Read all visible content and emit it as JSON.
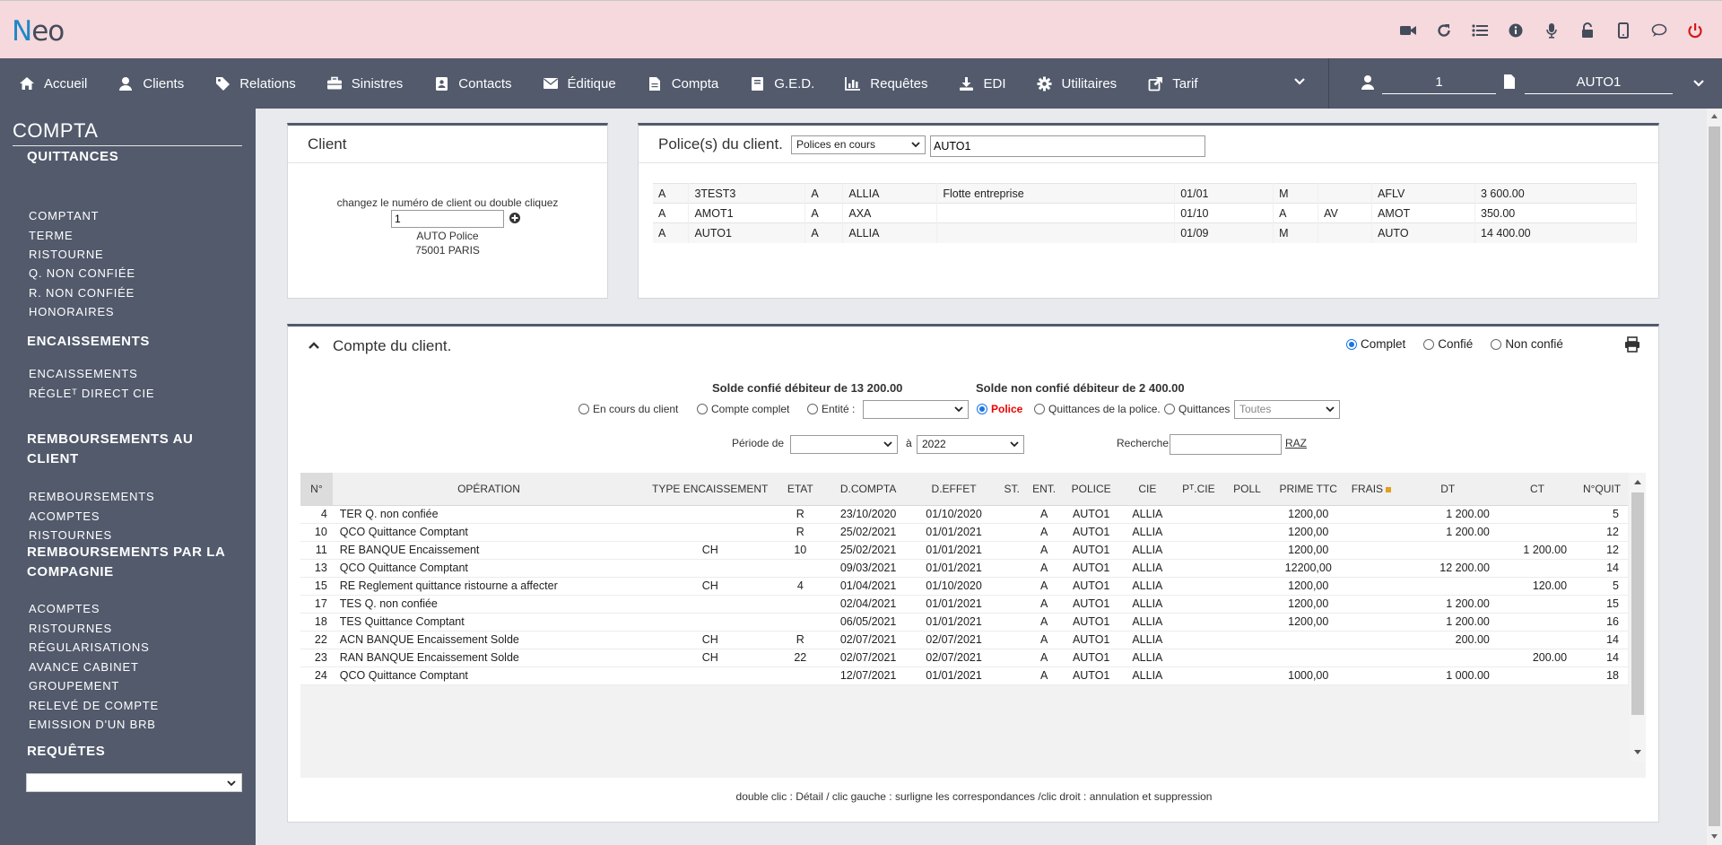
{
  "app": {
    "logo_n": "N",
    "logo_rest": "eo"
  },
  "top_icons": [
    "video-icon",
    "refresh-icon",
    "list-icon",
    "info-icon",
    "microphone-icon",
    "unlock-icon",
    "mobile-icon",
    "chat-icon",
    "power-icon"
  ],
  "nav": {
    "items": [
      {
        "label": "Accueil",
        "icon": "home-icon"
      },
      {
        "label": "Clients",
        "icon": "user-icon"
      },
      {
        "label": "Relations",
        "icon": "tag-icon"
      },
      {
        "label": "Sinistres",
        "icon": "briefcase-icon"
      },
      {
        "label": "Contacts",
        "icon": "contact-card-icon"
      },
      {
        "label": "Éditique",
        "icon": "envelope-icon"
      },
      {
        "label": "Compta",
        "icon": "file-icon"
      },
      {
        "label": "G.E.D.",
        "icon": "book-icon"
      },
      {
        "label": "Requêtes",
        "icon": "chart-icon"
      },
      {
        "label": "EDI",
        "icon": "download-icon"
      },
      {
        "label": "Utilitaires",
        "icon": "gear-icon"
      },
      {
        "label": "Tarif",
        "icon": "external-link-icon"
      }
    ],
    "client_number": "1",
    "policy_number": "AUTO1"
  },
  "sidebar": {
    "title": "COMPTA",
    "sections": [
      {
        "title": "QUITTANCES",
        "items": [
          "COMPTANT",
          "TERME",
          "RISTOURNE",
          "Q. NON CONFIÉE",
          "R. NON CONFIÉE",
          "HONORAIRES"
        ]
      },
      {
        "title": "ENCAISSEMENTS",
        "items": [
          "ENCAISSEMENTS",
          "RÉGLEᵀ DIRECT CIE"
        ]
      },
      {
        "title": "REMBOURSEMENTS AU CLIENT",
        "items": [
          "REMBOURSEMENTS",
          "ACOMPTES",
          "RISTOURNES"
        ]
      },
      {
        "title": "REMBOURSEMENTS PAR LA COMPAGNIE",
        "items": [
          "ACOMPTES",
          "RISTOURNES",
          "RÉGULARISATIONS",
          "AVANCE CABINET",
          "GROUPEMENT",
          "RELEVÉ DE COMPTE",
          "EMISSION D'UN BRB"
        ]
      },
      {
        "title": "REQUÊTES",
        "items": []
      }
    ],
    "requetes_select": ""
  },
  "client_card": {
    "title": "Client",
    "hint": "changez le numéro de client ou double cliquez",
    "number": "1",
    "name": "AUTO Police",
    "city": "75001 PARIS"
  },
  "policies_card": {
    "title": "Police(s) du client.",
    "filter": "Polices en cours",
    "search": "AUTO1",
    "rows": [
      [
        "A",
        "3TEST3",
        "A",
        "ALLIA",
        "Flotte entreprise",
        "01/01",
        "M",
        "",
        "AFLV",
        "3 600.00"
      ],
      [
        "A",
        "AMOT1",
        "A",
        "AXA",
        "",
        "01/10",
        "A",
        "AV",
        "AMOT",
        "350.00"
      ],
      [
        "A",
        "AUTO1",
        "A",
        "ALLIA",
        "",
        "01/09",
        "M",
        "",
        "AUTO",
        "14 400.00"
      ]
    ]
  },
  "account_card": {
    "title": "Compte du client.",
    "view_options": [
      {
        "label": "Complet",
        "checked": true
      },
      {
        "label": "Confié",
        "checked": false
      },
      {
        "label": "Non confié",
        "checked": false
      }
    ],
    "balance_confie": "Solde confié débiteur de 13 200.00",
    "balance_non_confie": "Solde non confié débiteur de 2 400.00",
    "filters": {
      "en_cours": "En cours du client",
      "compte_complet": "Compte complet",
      "entite": "Entité :",
      "police": "Police",
      "quittances_police": "Quittances de la police.",
      "quittances": "Quittances",
      "quittances_select": "Toutes"
    },
    "periode_label": "Période de",
    "periode_from": "",
    "periode_a": "à",
    "periode_to": "2022",
    "recherche_label": "Recherche",
    "raz": "RAZ",
    "columns": [
      "N°",
      "OPÉRATION",
      "TYPE ENCAISSEMENT",
      "ETAT",
      "D.COMPTA",
      "D.EFFET",
      "ST.",
      "ENT.",
      "POLICE",
      "CIE",
      "Pᵀ.CIE",
      "POLL",
      "PRIME TTC",
      "FRAIS",
      "DT",
      "CT",
      "N°QUIT"
    ],
    "rows": [
      [
        "4",
        "TER Q. non confiée",
        "",
        "R",
        "23/10/2020",
        "01/10/2020",
        "",
        "A",
        "AUTO1",
        "ALLIA",
        "",
        "",
        "1200,00",
        "",
        "1 200.00",
        "",
        "5"
      ],
      [
        "10",
        "QCO Quittance Comptant",
        "",
        "R",
        "25/02/2021",
        "01/01/2021",
        "",
        "A",
        "AUTO1",
        "ALLIA",
        "",
        "",
        "1200,00",
        "",
        "1 200.00",
        "",
        "12"
      ],
      [
        "11",
        "RE BANQUE Encaissement",
        "CH",
        "10",
        "25/02/2021",
        "01/01/2021",
        "",
        "A",
        "AUTO1",
        "ALLIA",
        "",
        "",
        "1200,00",
        "",
        "",
        "1 200.00",
        "12"
      ],
      [
        "13",
        "QCO Quittance Comptant",
        "",
        "",
        "09/03/2021",
        "01/01/2021",
        "",
        "A",
        "AUTO1",
        "ALLIA",
        "",
        "",
        "12200,00",
        "",
        "12 200.00",
        "",
        "14"
      ],
      [
        "15",
        "RE Reglement quittance ristourne a affecter",
        "CH",
        "4",
        "01/04/2021",
        "01/10/2020",
        "",
        "A",
        "AUTO1",
        "ALLIA",
        "",
        "",
        "1200,00",
        "",
        "",
        "120.00",
        "5"
      ],
      [
        "17",
        "TES Q. non confiée",
        "",
        "",
        "02/04/2021",
        "01/01/2021",
        "",
        "A",
        "AUTO1",
        "ALLIA",
        "",
        "",
        "1200,00",
        "",
        "1 200.00",
        "",
        "15"
      ],
      [
        "18",
        "TES Quittance Comptant",
        "",
        "",
        "06/05/2021",
        "01/01/2021",
        "",
        "A",
        "AUTO1",
        "ALLIA",
        "",
        "",
        "1200,00",
        "",
        "1 200.00",
        "",
        "16"
      ],
      [
        "22",
        "ACN BANQUE Encaissement Solde",
        "CH",
        "R",
        "02/07/2021",
        "02/07/2021",
        "",
        "A",
        "AUTO1",
        "ALLIA",
        "",
        "",
        "",
        "",
        "200.00",
        "",
        "14"
      ],
      [
        "23",
        "RAN BANQUE Encaissement Solde",
        "CH",
        "22",
        "02/07/2021",
        "02/07/2021",
        "",
        "A",
        "AUTO1",
        "ALLIA",
        "",
        "",
        "",
        "",
        "",
        "200.00",
        "14"
      ],
      [
        "24",
        "QCO Quittance Comptant",
        "",
        "",
        "12/07/2021",
        "01/01/2021",
        "",
        "A",
        "AUTO1",
        "ALLIA",
        "",
        "",
        "1000,00",
        "",
        "1 000.00",
        "",
        "18"
      ]
    ],
    "footer_hint": "double clic : Détail / clic gauche : surligne les correspondances /clic droit : annulation et suppression"
  },
  "colors": {
    "nav_bg": "#525a6c",
    "top_bg": "#f6d9dd",
    "accent_red": "#d31a1a",
    "logo_blue": "#1e88c7"
  }
}
